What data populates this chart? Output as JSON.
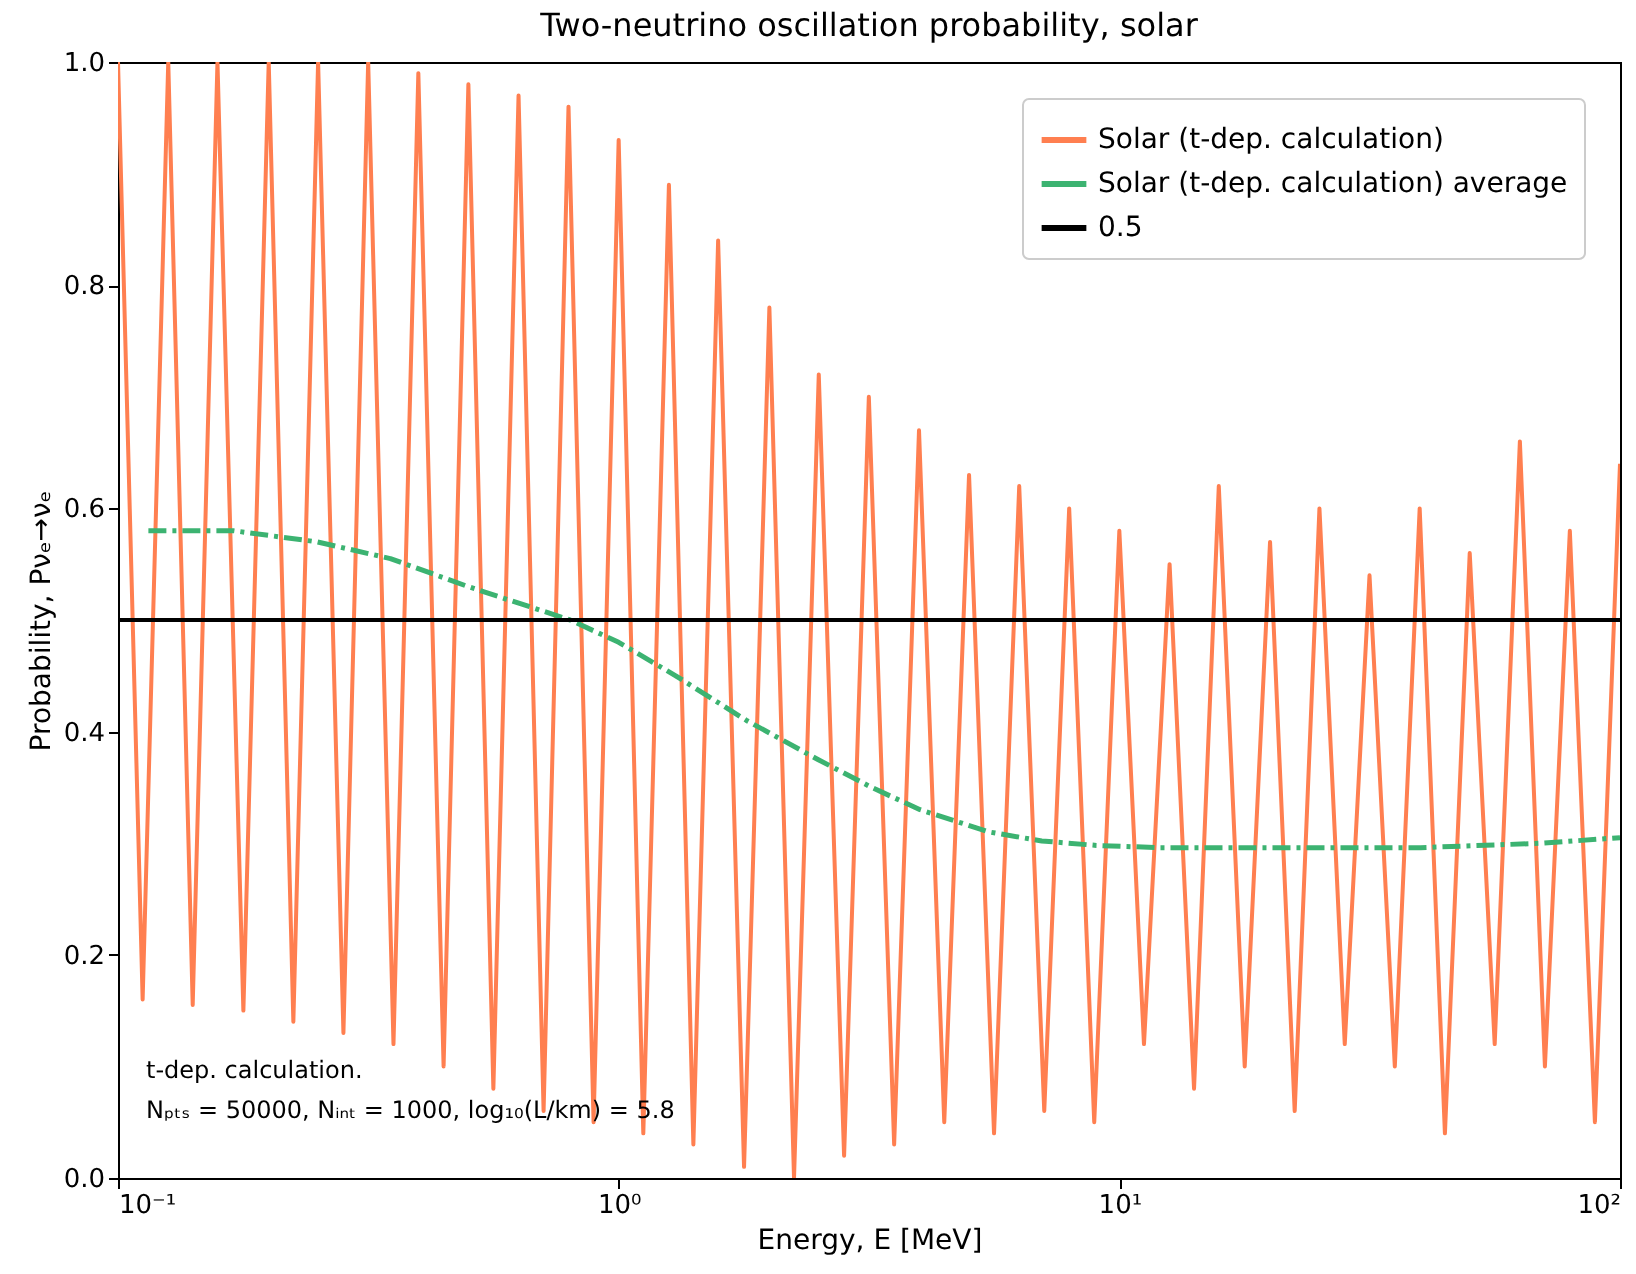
{
  "chart_data": {
    "type": "line",
    "title": "Two-neutrino oscillation probability, solar",
    "xlabel": "Energy, E [MeV]",
    "ylabel": "Probability, Pνₑ→νₑ",
    "log": "x",
    "xlim": [
      0.1,
      100
    ],
    "xticks": [
      {
        "value": 0.1,
        "label": "10⁻¹"
      },
      {
        "value": 1,
        "label": "10⁰"
      },
      {
        "value": 10,
        "label": "10¹"
      },
      {
        "value": 100,
        "label": "10²"
      }
    ],
    "ylim": [
      0,
      1
    ],
    "yticks": [
      {
        "value": 0,
        "label": "0.0"
      },
      0.2,
      0.4,
      0.6,
      0.8,
      {
        "value": 1,
        "label": "1.0"
      }
    ],
    "grid": false,
    "legend": "top right",
    "series": [
      {
        "name": "Solar (t-dep. calculation)",
        "color": "#ff7f50",
        "line_style": "solid",
        "x": [
          0.1,
          0.112,
          0.126,
          0.141,
          0.158,
          0.178,
          0.2,
          0.224,
          0.251,
          0.282,
          0.316,
          0.355,
          0.398,
          0.447,
          0.501,
          0.562,
          0.631,
          0.708,
          0.794,
          0.891,
          1,
          1.12,
          1.26,
          1.41,
          1.58,
          1.78,
          2,
          2.24,
          2.51,
          2.82,
          3.16,
          3.55,
          3.98,
          4.47,
          5.01,
          5.62,
          6.31,
          7.08,
          7.94,
          8.91,
          10,
          11.2,
          12.6,
          14.1,
          15.8,
          17.8,
          20,
          22.4,
          25.1,
          28.2,
          31.6,
          35.5,
          39.8,
          44.7,
          50.1,
          56.2,
          63.1,
          70.8,
          79.4,
          89.1,
          100
        ],
        "values": [
          1.0,
          0.16,
          1.0,
          0.155,
          1.0,
          0.15,
          1.0,
          0.14,
          1.0,
          0.13,
          1.0,
          0.12,
          0.99,
          0.1,
          0.98,
          0.08,
          0.97,
          0.06,
          0.96,
          0.05,
          0.93,
          0.04,
          0.89,
          0.03,
          0.84,
          0.01,
          0.78,
          0.0,
          0.72,
          0.02,
          0.7,
          0.03,
          0.67,
          0.05,
          0.63,
          0.04,
          0.62,
          0.06,
          0.6,
          0.05,
          0.58,
          0.12,
          0.55,
          0.08,
          0.62,
          0.1,
          0.57,
          0.06,
          0.6,
          0.12,
          0.54,
          0.1,
          0.6,
          0.04,
          0.56,
          0.12,
          0.66,
          0.1,
          0.58,
          0.05,
          0.64
        ]
      },
      {
        "name": "Solar (t-dep. calculation) average",
        "color": "#3cb371",
        "line_style": "dashed",
        "x": [
          0.115,
          0.17,
          0.25,
          0.35,
          0.5,
          0.8,
          1.0,
          1.3,
          1.8,
          2.5,
          3.2,
          4,
          5.5,
          7,
          9,
          12,
          20,
          40,
          70,
          100
        ],
        "values": [
          0.58,
          0.58,
          0.57,
          0.555,
          0.53,
          0.5,
          0.48,
          0.45,
          0.41,
          0.375,
          0.35,
          0.33,
          0.31,
          0.302,
          0.298,
          0.296,
          0.296,
          0.296,
          0.3,
          0.305
        ]
      }
    ],
    "ref_lines": [
      {
        "axis": "y",
        "value": 0.5,
        "label": "0.5",
        "color": "#000000",
        "line_style": "solid"
      }
    ],
    "annotations": [
      "t-dep. calculation.",
      "Nₚₜₛ = 50000, Nᵢₙₜ = 1000, log₁₀(L/km) = 5.8"
    ]
  }
}
